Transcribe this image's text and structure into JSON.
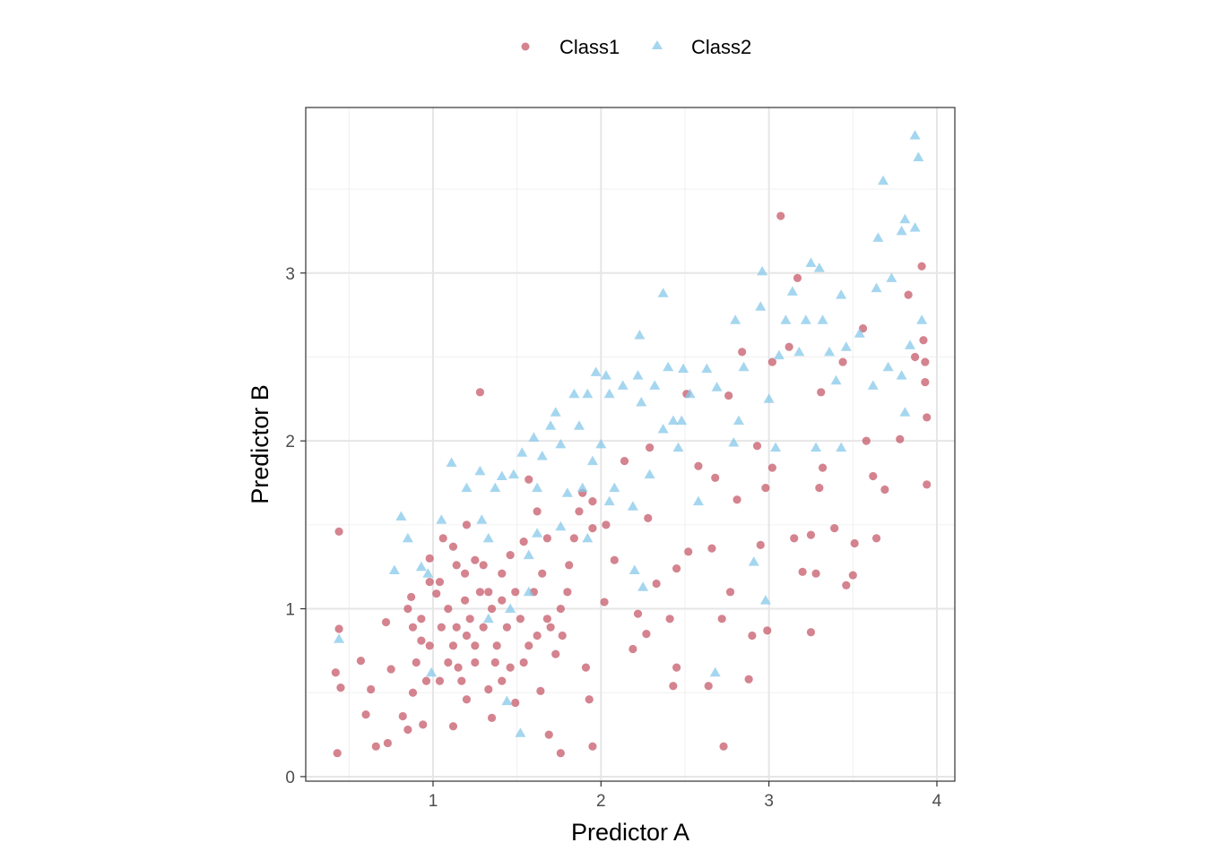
{
  "chart_data": {
    "type": "scatter",
    "xlabel": "Predictor A",
    "ylabel": "Predictor B",
    "xlim": [
      0.242,
      4.107
    ],
    "ylim": [
      -0.027,
      3.986
    ],
    "xticks": [
      1,
      2,
      3,
      4
    ],
    "yticks": [
      0,
      1,
      2,
      3
    ],
    "grid": true,
    "legend_position": "top",
    "series": [
      {
        "name": "Class1",
        "marker": "circle",
        "color": "#c65a6a",
        "points": [
          [
            0.44,
            1.46
          ],
          [
            0.42,
            0.62
          ],
          [
            0.44,
            0.88
          ],
          [
            0.45,
            0.53
          ],
          [
            0.43,
            0.14
          ],
          [
            0.57,
            0.69
          ],
          [
            0.6,
            0.37
          ],
          [
            0.63,
            0.52
          ],
          [
            0.66,
            0.18
          ],
          [
            0.73,
            0.2
          ],
          [
            0.72,
            0.92
          ],
          [
            0.75,
            0.64
          ],
          [
            0.82,
            0.36
          ],
          [
            0.85,
            0.28
          ],
          [
            0.88,
            0.5
          ],
          [
            0.87,
            1.07
          ],
          [
            0.93,
            0.81
          ],
          [
            0.94,
            0.31
          ],
          [
            0.98,
            1.3
          ],
          [
            1.02,
            1.09
          ],
          [
            1.05,
            0.89
          ],
          [
            1.12,
            0.3
          ],
          [
            1.15,
            0.65
          ],
          [
            1.19,
            1.05
          ],
          [
            1.2,
            1.5
          ],
          [
            1.28,
            2.29
          ],
          [
            1.25,
            1.29
          ],
          [
            1.3,
            0.89
          ],
          [
            1.33,
            1.1
          ],
          [
            1.37,
            0.68
          ],
          [
            1.35,
            0.35
          ],
          [
            1.41,
            1.21
          ],
          [
            1.44,
            0.89
          ],
          [
            1.46,
            0.65
          ],
          [
            1.49,
            0.44
          ],
          [
            1.54,
            1.4
          ],
          [
            1.57,
            1.77
          ],
          [
            1.62,
            1.58
          ],
          [
            1.64,
            0.51
          ],
          [
            1.68,
            0.94
          ],
          [
            1.69,
            0.25
          ],
          [
            1.76,
            0.14
          ],
          [
            1.8,
            1.1
          ],
          [
            1.84,
            1.42
          ],
          [
            1.91,
            0.65
          ],
          [
            1.93,
            0.46
          ],
          [
            1.95,
            0.18
          ],
          [
            1.95,
            1.64
          ],
          [
            2.02,
            1.04
          ],
          [
            2.08,
            1.29
          ],
          [
            2.14,
            1.88
          ],
          [
            2.19,
            0.76
          ],
          [
            2.22,
            0.97
          ],
          [
            2.27,
            0.85
          ],
          [
            2.28,
            1.54
          ],
          [
            2.29,
            1.96
          ],
          [
            2.33,
            1.15
          ],
          [
            2.41,
            0.94
          ],
          [
            2.43,
            0.54
          ],
          [
            2.45,
            0.65
          ],
          [
            2.45,
            1.24
          ],
          [
            2.51,
            2.28
          ],
          [
            2.52,
            1.34
          ],
          [
            2.58,
            1.85
          ],
          [
            2.64,
            0.54
          ],
          [
            2.66,
            1.36
          ],
          [
            2.68,
            1.78
          ],
          [
            2.72,
            0.94
          ],
          [
            2.73,
            0.18
          ],
          [
            2.76,
            2.27
          ],
          [
            2.77,
            1.1
          ],
          [
            2.81,
            1.65
          ],
          [
            2.84,
            2.53
          ],
          [
            2.88,
            0.58
          ],
          [
            2.9,
            0.84
          ],
          [
            2.93,
            1.97
          ],
          [
            2.95,
            1.38
          ],
          [
            2.98,
            1.72
          ],
          [
            2.99,
            0.87
          ],
          [
            3.02,
            2.47
          ],
          [
            3.02,
            1.84
          ],
          [
            3.07,
            3.34
          ],
          [
            3.12,
            2.56
          ],
          [
            3.15,
            1.42
          ],
          [
            3.17,
            2.97
          ],
          [
            3.2,
            1.22
          ],
          [
            3.25,
            0.86
          ],
          [
            3.25,
            1.44
          ],
          [
            3.28,
            1.21
          ],
          [
            3.3,
            1.72
          ],
          [
            3.31,
            2.29
          ],
          [
            3.32,
            1.84
          ],
          [
            3.39,
            1.48
          ],
          [
            3.44,
            2.47
          ],
          [
            3.46,
            1.14
          ],
          [
            3.5,
            1.2
          ],
          [
            3.51,
            1.39
          ],
          [
            3.56,
            2.67
          ],
          [
            3.58,
            2.0
          ],
          [
            3.62,
            1.79
          ],
          [
            3.64,
            1.42
          ],
          [
            3.69,
            1.71
          ],
          [
            3.78,
            2.01
          ],
          [
            3.83,
            2.87
          ],
          [
            3.87,
            2.5
          ],
          [
            3.91,
            3.04
          ],
          [
            3.92,
            2.6
          ],
          [
            3.93,
            2.35
          ],
          [
            3.94,
            2.14
          ],
          [
            3.94,
            1.74
          ],
          [
            3.93,
            2.47
          ],
          [
            0.93,
            0.94
          ],
          [
            0.98,
            0.78
          ],
          [
            1.04,
            1.16
          ],
          [
            1.09,
            1.0
          ],
          [
            1.12,
            0.78
          ],
          [
            1.14,
            1.26
          ],
          [
            1.17,
            0.57
          ],
          [
            1.2,
            0.84
          ],
          [
            1.22,
            0.94
          ],
          [
            1.25,
            0.68
          ],
          [
            1.09,
            0.68
          ],
          [
            1.04,
            0.57
          ],
          [
            0.96,
            0.57
          ],
          [
            0.9,
            0.68
          ],
          [
            0.88,
            0.89
          ],
          [
            0.85,
            1.0
          ],
          [
            1.3,
            1.26
          ],
          [
            1.35,
            1.0
          ],
          [
            1.38,
            0.78
          ],
          [
            1.41,
            1.05
          ],
          [
            1.46,
            1.32
          ],
          [
            1.49,
            1.1
          ],
          [
            1.52,
            0.94
          ],
          [
            1.57,
            0.78
          ],
          [
            1.6,
            1.1
          ],
          [
            1.65,
            1.21
          ],
          [
            1.7,
            0.89
          ],
          [
            1.73,
            0.73
          ],
          [
            1.76,
            1.0
          ],
          [
            1.77,
            0.84
          ],
          [
            1.28,
            1.1
          ],
          [
            1.19,
            1.21
          ],
          [
            1.12,
            1.37
          ],
          [
            1.06,
            1.42
          ],
          [
            1.2,
            0.46
          ],
          [
            1.33,
            0.52
          ],
          [
            0.98,
            1.16
          ],
          [
            1.14,
            0.89
          ],
          [
            1.25,
            0.78
          ],
          [
            1.41,
            0.57
          ],
          [
            1.54,
            0.68
          ],
          [
            1.62,
            0.84
          ],
          [
            1.68,
            1.42
          ],
          [
            1.81,
            1.26
          ],
          [
            1.87,
            1.58
          ],
          [
            1.89,
            1.69
          ],
          [
            1.95,
            1.48
          ],
          [
            2.03,
            1.5
          ]
        ]
      },
      {
        "name": "Class2",
        "marker": "triangle",
        "color": "#87c8ea",
        "points": [
          [
            0.44,
            0.82
          ],
          [
            0.81,
            1.55
          ],
          [
            0.85,
            1.42
          ],
          [
            0.77,
            1.23
          ],
          [
            0.93,
            1.25
          ],
          [
            0.97,
            1.21
          ],
          [
            0.99,
            0.62
          ],
          [
            1.05,
            1.53
          ],
          [
            1.11,
            1.87
          ],
          [
            1.2,
            1.72
          ],
          [
            1.28,
            1.82
          ],
          [
            1.29,
            1.53
          ],
          [
            1.33,
            1.42
          ],
          [
            1.37,
            1.72
          ],
          [
            1.41,
            1.79
          ],
          [
            1.44,
            0.45
          ],
          [
            1.48,
            1.8
          ],
          [
            1.52,
            0.26
          ],
          [
            1.53,
            1.93
          ],
          [
            1.57,
            1.32
          ],
          [
            1.6,
            2.02
          ],
          [
            1.62,
            1.72
          ],
          [
            1.65,
            1.91
          ],
          [
            1.7,
            2.09
          ],
          [
            1.73,
            2.17
          ],
          [
            1.76,
            1.98
          ],
          [
            1.8,
            1.69
          ],
          [
            1.84,
            2.28
          ],
          [
            1.87,
            2.09
          ],
          [
            1.89,
            1.72
          ],
          [
            1.92,
            2.28
          ],
          [
            1.95,
            1.88
          ],
          [
            1.97,
            2.41
          ],
          [
            2.0,
            1.98
          ],
          [
            2.03,
            2.39
          ],
          [
            2.05,
            2.28
          ],
          [
            2.08,
            1.72
          ],
          [
            2.13,
            2.33
          ],
          [
            2.19,
            1.61
          ],
          [
            2.2,
            1.23
          ],
          [
            2.22,
            2.39
          ],
          [
            2.23,
            2.63
          ],
          [
            2.24,
            2.23
          ],
          [
            2.25,
            1.13
          ],
          [
            2.29,
            1.8
          ],
          [
            2.32,
            2.33
          ],
          [
            2.37,
            2.88
          ],
          [
            2.4,
            2.44
          ],
          [
            2.43,
            2.12
          ],
          [
            2.46,
            1.96
          ],
          [
            2.49,
            2.43
          ],
          [
            2.53,
            2.28
          ],
          [
            2.58,
            1.64
          ],
          [
            2.63,
            2.43
          ],
          [
            2.68,
            0.62
          ],
          [
            2.69,
            2.32
          ],
          [
            2.79,
            1.99
          ],
          [
            2.8,
            2.72
          ],
          [
            2.82,
            2.12
          ],
          [
            2.85,
            2.44
          ],
          [
            2.91,
            1.28
          ],
          [
            2.95,
            2.8
          ],
          [
            2.96,
            3.01
          ],
          [
            2.98,
            1.05
          ],
          [
            3.0,
            2.25
          ],
          [
            3.04,
            1.96
          ],
          [
            3.06,
            2.51
          ],
          [
            3.1,
            2.72
          ],
          [
            3.14,
            2.89
          ],
          [
            3.18,
            2.53
          ],
          [
            3.22,
            2.72
          ],
          [
            3.25,
            3.06
          ],
          [
            3.28,
            1.96
          ],
          [
            3.3,
            3.03
          ],
          [
            3.32,
            2.72
          ],
          [
            3.36,
            2.53
          ],
          [
            3.4,
            2.36
          ],
          [
            3.43,
            2.87
          ],
          [
            3.43,
            1.96
          ],
          [
            3.46,
            2.56
          ],
          [
            3.54,
            2.64
          ],
          [
            3.62,
            2.33
          ],
          [
            3.64,
            2.91
          ],
          [
            3.65,
            3.21
          ],
          [
            3.68,
            3.55
          ],
          [
            3.71,
            2.44
          ],
          [
            3.73,
            2.97
          ],
          [
            3.79,
            3.25
          ],
          [
            3.81,
            3.32
          ],
          [
            3.81,
            2.17
          ],
          [
            3.84,
            2.57
          ],
          [
            3.87,
            3.27
          ],
          [
            3.87,
            3.82
          ],
          [
            3.89,
            3.69
          ],
          [
            3.91,
            2.72
          ],
          [
            3.79,
            2.39
          ],
          [
            1.62,
            1.45
          ],
          [
            1.76,
            1.49
          ],
          [
            1.92,
            1.42
          ],
          [
            1.57,
            1.1
          ],
          [
            1.33,
            0.94
          ],
          [
            1.46,
            1.0
          ],
          [
            2.05,
            1.64
          ],
          [
            2.37,
            2.07
          ],
          [
            2.48,
            2.12
          ]
        ]
      }
    ]
  }
}
